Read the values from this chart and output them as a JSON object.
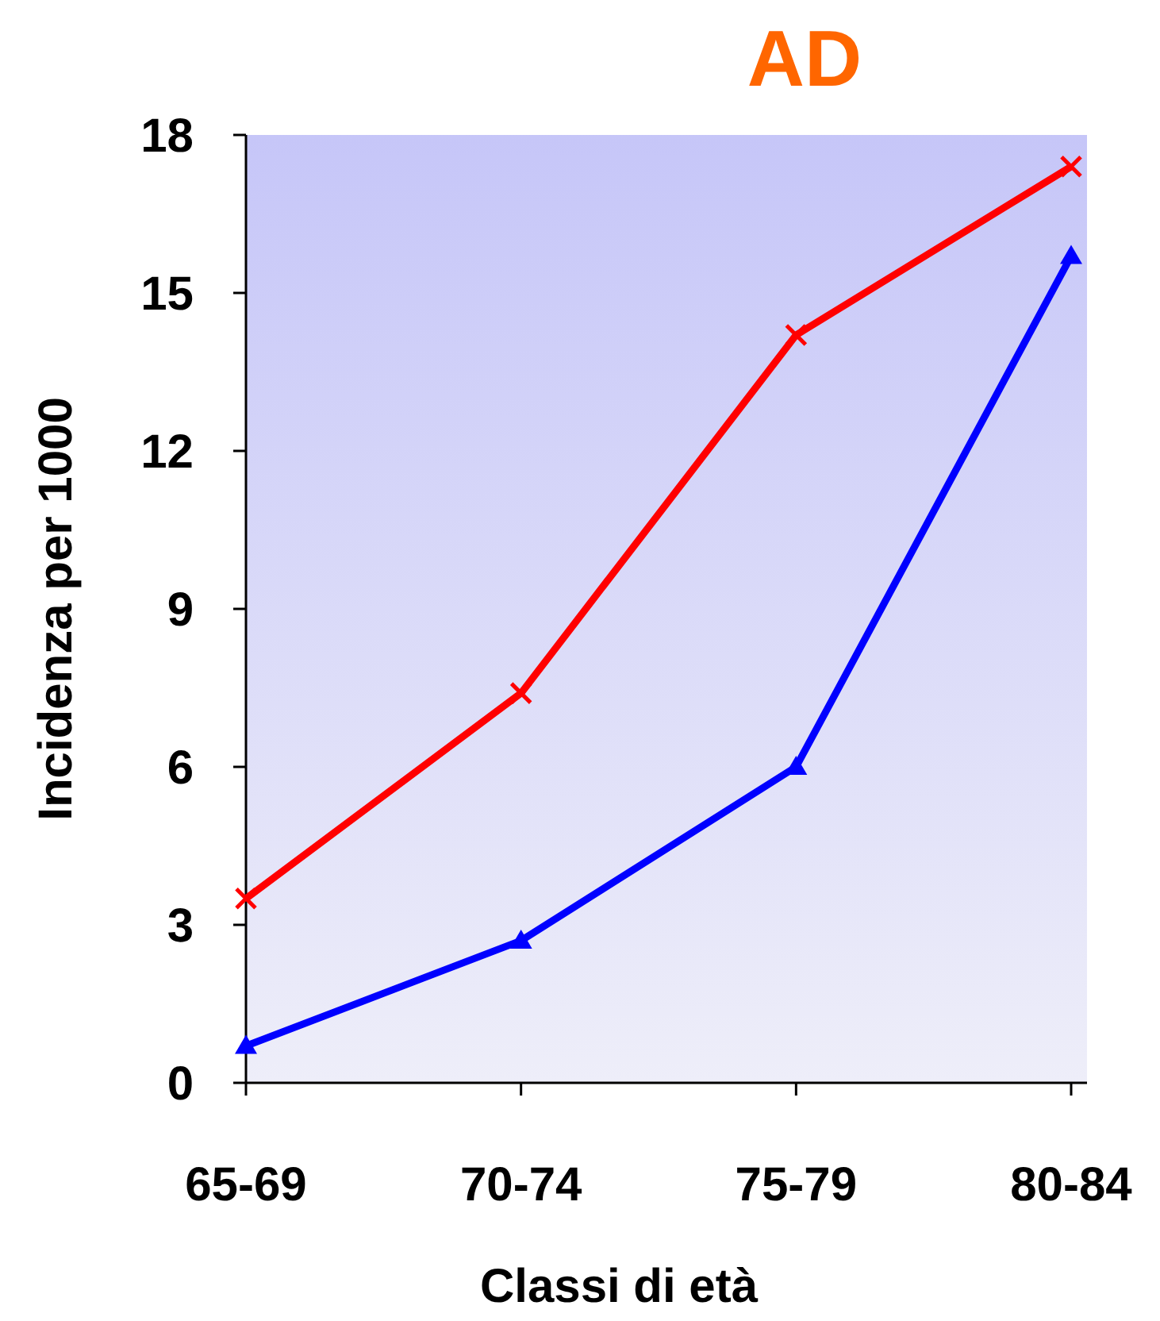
{
  "chart_data": {
    "type": "line",
    "title": "AD",
    "xlabel": "Classi di età",
    "ylabel": "Incidenza per 1000",
    "categories": [
      "65-69",
      "70-74",
      "75-79",
      "80-84"
    ],
    "series": [
      {
        "color": "#ff0000",
        "marker": "cross",
        "values": [
          3.5,
          7.4,
          14.2,
          17.4
        ]
      },
      {
        "color": "#0000ff",
        "marker": "triangle",
        "values": [
          0.7,
          2.7,
          6.0,
          15.7
        ]
      }
    ],
    "ylim": [
      0,
      18
    ],
    "yticks": [
      0,
      3,
      6,
      9,
      12,
      15,
      18
    ],
    "grid": false
  }
}
